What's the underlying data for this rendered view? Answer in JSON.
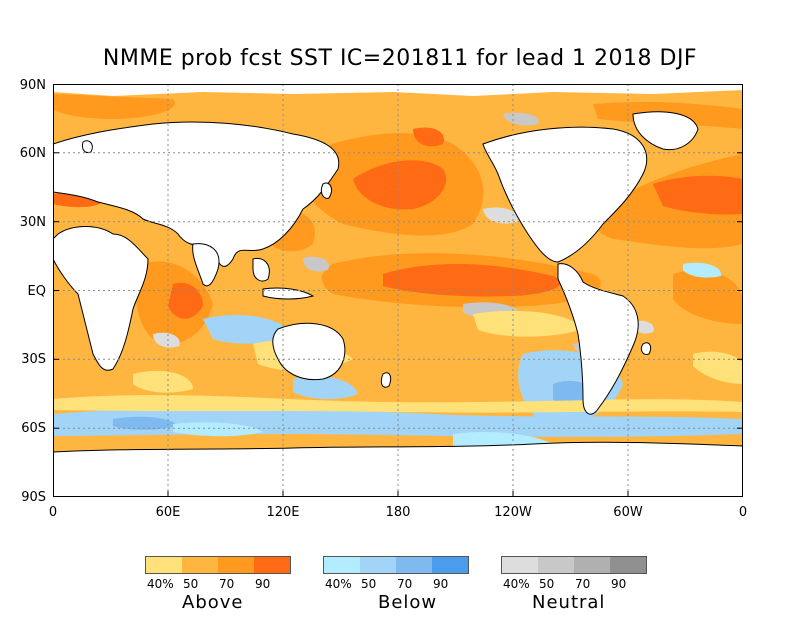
{
  "title": "NMME prob fcst SST IC=201811 for lead 1 2018 DJF",
  "lat_labels": [
    "90N",
    "60N",
    "30N",
    "EQ",
    "30S",
    "60S",
    "90S"
  ],
  "lon_labels": [
    "0",
    "60E",
    "120E",
    "180",
    "120W",
    "60W",
    "0"
  ],
  "legend": {
    "above": {
      "name": "Above",
      "ticks": [
        "40%",
        "50",
        "70",
        "90"
      ],
      "colors": [
        "#ffe17a",
        "#ffb640",
        "#ff9a1e",
        "#ff6a14"
      ]
    },
    "below": {
      "name": "Below",
      "ticks": [
        "40%",
        "50",
        "70",
        "90"
      ],
      "colors": [
        "#b4ecff",
        "#a2d4f7",
        "#7ebaf0",
        "#4a9cec"
      ]
    },
    "neutral": {
      "name": "Neutral",
      "ticks": [
        "40%",
        "50",
        "70",
        "90"
      ],
      "colors": [
        "#dddddd",
        "#c8c8c8",
        "#b0b0b0",
        "#909090"
      ]
    }
  },
  "colors": {
    "ocean_base": "#ffb640",
    "land": "#ffffff",
    "grid": "#8c8c8c"
  }
}
